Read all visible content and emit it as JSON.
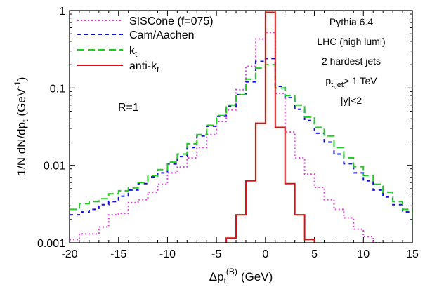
{
  "chart_data": {
    "type": "line",
    "step": true,
    "log_y": true,
    "xlabel_main": "Δp",
    "xlabel_sub": "t",
    "xlabel_sup": "(B)",
    "xlabel_unit": "(GeV)",
    "ylabel_main": "1/N dN/dp",
    "ylabel_sub": "t",
    "ylabel_unit": "(GeV",
    "ylabel_sup": "-1",
    "ylabel_close": ")",
    "xlim": [
      -20,
      15
    ],
    "ylim": [
      0.001,
      1
    ],
    "x_ticks": [
      "-20",
      "-15",
      "-10",
      "-5",
      "0",
      "5",
      "10",
      "15"
    ],
    "x_tick_values": [
      -20,
      -15,
      -10,
      -5,
      0,
      5,
      10,
      15
    ],
    "y_ticks": [
      "0.001",
      "0.01",
      "0.1",
      "1"
    ],
    "y_tick_values": [
      0.001,
      0.01,
      0.1,
      1
    ],
    "annotations": {
      "r": "R=1",
      "line1": "Pythia 6.4",
      "line2": "LHC (high lumi)",
      "line3": "2 hardest jets",
      "line4_main": "p",
      "line4_sub": "t,jet",
      "line4_rest": "> 1 TeV",
      "line5": "|y|<2"
    },
    "series": [
      {
        "name": "SISCone (f=075)",
        "color": "#e040e0",
        "dash": "2,3",
        "bin_width": 1,
        "x_start": -20,
        "values": [
          0.0011,
          0.0013,
          0.0013,
          0.0016,
          0.0023,
          0.0024,
          0.0033,
          0.0036,
          0.0045,
          0.0057,
          0.008,
          0.0095,
          0.0125,
          0.017,
          0.025,
          0.037,
          0.052,
          0.095,
          0.19,
          0.43,
          0.52,
          0.085,
          0.027,
          0.0125,
          0.0077,
          0.0052,
          0.0036,
          0.0027,
          0.0021,
          0.0015,
          0.0012,
          0.001
        ]
      },
      {
        "name": "Cam/Aachen",
        "color": "#1010e0",
        "dash": "5,5",
        "bin_width": 1,
        "x_start": -20,
        "values": [
          0.0023,
          0.0025,
          0.0027,
          0.0031,
          0.0034,
          0.004,
          0.0048,
          0.0058,
          0.0071,
          0.008,
          0.0104,
          0.013,
          0.017,
          0.024,
          0.032,
          0.043,
          0.058,
          0.082,
          0.12,
          0.22,
          0.24,
          0.105,
          0.075,
          0.053,
          0.038,
          0.026,
          0.02,
          0.014,
          0.0105,
          0.008,
          0.0063,
          0.0048,
          0.0039,
          0.0031,
          0.0025,
          0.002
        ]
      },
      {
        "name": "k_t",
        "legend_main": "k",
        "legend_sub": "t",
        "color": "#22cc22",
        "dash": "10,5",
        "bin_width": 1,
        "x_start": -20,
        "values": [
          0.0027,
          0.0032,
          0.0034,
          0.0037,
          0.0043,
          0.0047,
          0.0051,
          0.006,
          0.0074,
          0.0088,
          0.011,
          0.014,
          0.019,
          0.025,
          0.033,
          0.044,
          0.06,
          0.082,
          0.13,
          0.18,
          0.2,
          0.1,
          0.08,
          0.06,
          0.042,
          0.031,
          0.024,
          0.017,
          0.0125,
          0.0096,
          0.0074,
          0.0057,
          0.0045,
          0.0034,
          0.0027,
          0.0019
        ]
      },
      {
        "name": "anti-k_t",
        "legend_main": "anti-k",
        "legend_sub": "t",
        "color": "#e01010",
        "dash": "",
        "bin_width": 1,
        "x_start": -5,
        "values": [
          0.0007,
          0.00115,
          0.0023,
          0.0063,
          0.035,
          0.95,
          0.031,
          0.0058,
          0.0023,
          0.0011
        ]
      }
    ]
  }
}
